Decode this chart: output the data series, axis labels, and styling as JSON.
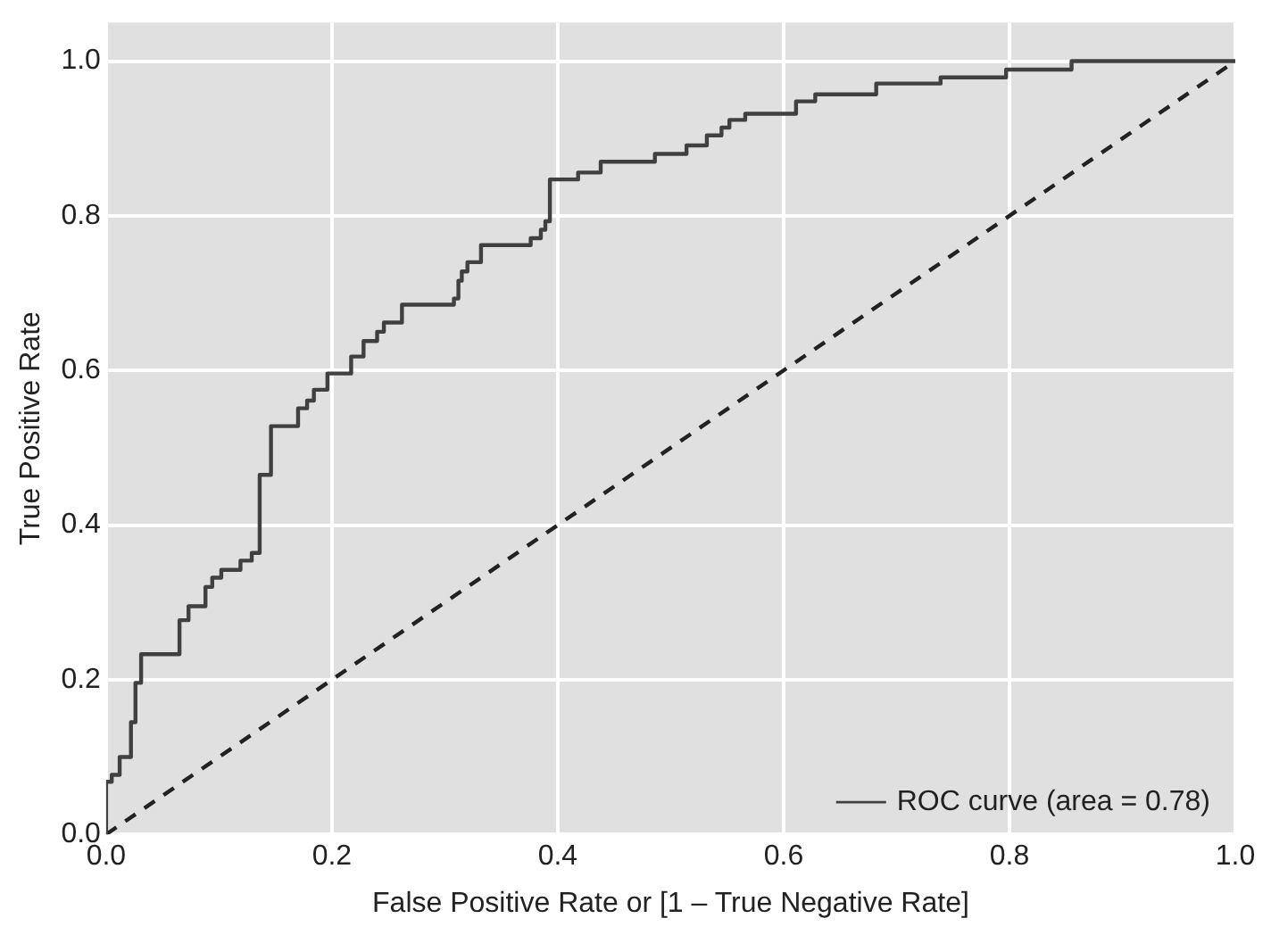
{
  "chart_data": {
    "type": "step",
    "xlabel": "False Positive Rate or [1 – True Negative Rate]",
    "ylabel": "True Positive Rate",
    "xlim": [
      0,
      1
    ],
    "xticks": [
      {
        "value": 0,
        "label": "0.0"
      },
      {
        "value": 0.2,
        "label": "0.2"
      },
      {
        "value": 0.4,
        "label": "0.4"
      },
      {
        "value": 0.6,
        "label": "0.6"
      },
      {
        "value": 0.8,
        "label": "0.8"
      },
      {
        "value": 1,
        "label": "1.0"
      }
    ],
    "ylim": [
      0,
      1.05
    ],
    "yticks": [
      {
        "value": 0,
        "label": "0.0"
      },
      {
        "value": 0.2,
        "label": "0.2"
      },
      {
        "value": 0.4,
        "label": "0.4"
      },
      {
        "value": 0.6,
        "label": "0.6"
      },
      {
        "value": 0.8,
        "label": "0.8"
      },
      {
        "value": 1,
        "label": "1.0"
      }
    ],
    "grid": true,
    "legend": "bottom right",
    "marker": "none",
    "series": [
      {
        "name": "ROC curve (area = 0.78)",
        "color": "#404040",
        "line_style": "solid",
        "x": [
          0,
          0.005,
          0.012,
          0.022,
          0.026,
          0.031,
          0.065,
          0.073,
          0.088,
          0.094,
          0.102,
          0.119,
          0.129,
          0.136,
          0.146,
          0.17,
          0.178,
          0.184,
          0.196,
          0.217,
          0.228,
          0.24,
          0.246,
          0.262,
          0.308,
          0.312,
          0.315,
          0.32,
          0.332,
          0.376,
          0.385,
          0.389,
          0.393,
          0.418,
          0.438,
          0.486,
          0.514,
          0.532,
          0.545,
          0.552,
          0.566,
          0.611,
          0.628,
          0.682,
          0.739,
          0.797,
          0.855,
          1
        ],
        "values": [
          0,
          0.068,
          0.077,
          0.1,
          0.145,
          0.196,
          0.233,
          0.277,
          0.295,
          0.32,
          0.332,
          0.342,
          0.354,
          0.364,
          0.465,
          0.528,
          0.551,
          0.561,
          0.575,
          0.596,
          0.618,
          0.638,
          0.65,
          0.662,
          0.685,
          0.693,
          0.716,
          0.728,
          0.74,
          0.762,
          0.771,
          0.782,
          0.793,
          0.847,
          0.856,
          0.87,
          0.88,
          0.891,
          0.904,
          0.914,
          0.924,
          0.932,
          0.948,
          0.957,
          0.971,
          0.979,
          0.989,
          1
        ]
      },
      {
        "color": "#222222",
        "type": "line",
        "line_style": "dashed",
        "x": [
          0,
          1
        ],
        "values": [
          0,
          1
        ]
      }
    ]
  }
}
